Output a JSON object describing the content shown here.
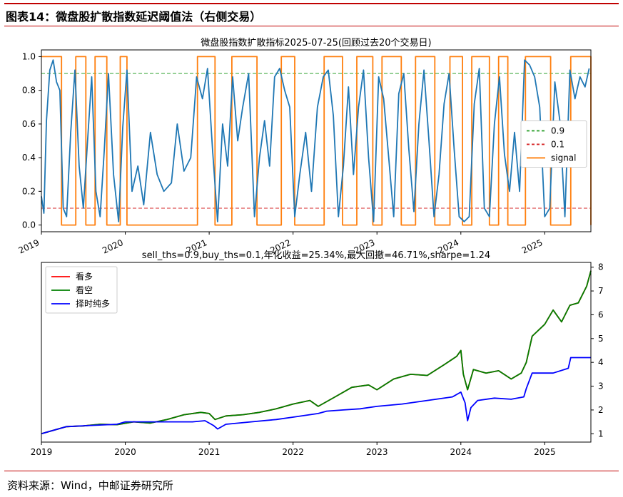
{
  "figure": {
    "title": "图表14：微盘股扩散指数延迟阈值法（右侧交易）",
    "source": "资料来源：Wind，中邮证券研究所",
    "accent_color": "#c00000"
  },
  "chart_data": [
    {
      "type": "line",
      "title": "微盘股指数扩散指标2025-07-25(回顾过去20个交易日)",
      "xlabel": "",
      "ylabel": "",
      "x_tick_labels": [
        "2019",
        "2020",
        "2021",
        "2022",
        "2023",
        "2024",
        "2025"
      ],
      "y_tick_labels": [
        "0.0",
        "0.2",
        "0.4",
        "0.6",
        "0.8",
        "1.0"
      ],
      "xlim": [
        2019.0,
        2025.55
      ],
      "ylim": [
        -0.04,
        1.04
      ],
      "legend_position": "center-right",
      "legend": [
        "0.9",
        "0.1",
        "signal"
      ],
      "reference_lines": [
        {
          "name": "0.9",
          "y": 0.9,
          "style": "dashed",
          "color": "#2ca02c"
        },
        {
          "name": "0.1",
          "y": 0.1,
          "style": "dashed",
          "color": "#d62728"
        }
      ],
      "series": [
        {
          "name": "signal",
          "color": "#ff7f0e",
          "step": true,
          "x": [
            2019.0,
            2019.22,
            2019.24,
            2019.39,
            2019.41,
            2019.52,
            2019.53,
            2019.62,
            2019.64,
            2019.76,
            2019.78,
            2019.92,
            2019.94,
            2020.0,
            2020.02,
            2020.18,
            2020.19,
            2020.84,
            2020.86,
            2021.05,
            2021.07,
            2021.25,
            2021.27,
            2021.55,
            2021.57,
            2021.84,
            2021.86,
            2022.0,
            2022.02,
            2022.35,
            2022.37,
            2022.57,
            2022.59,
            2022.74,
            2022.76,
            2022.93,
            2022.95,
            2023.04,
            2023.06,
            2023.27,
            2023.29,
            2023.44,
            2023.46,
            2023.67,
            2023.69,
            2023.85,
            2023.87,
            2024.0,
            2024.02,
            2024.11,
            2024.13,
            2024.32,
            2024.34,
            2024.43,
            2024.45,
            2024.54,
            2024.56,
            2024.75,
            2024.77,
            2025.05,
            2025.07,
            2025.29,
            2025.31,
            2025.55
          ],
          "values": [
            1,
            1,
            0,
            0,
            1,
            1,
            0,
            0,
            1,
            1,
            0,
            0,
            1,
            1,
            0,
            0,
            0,
            0,
            1,
            1,
            0,
            0,
            1,
            1,
            0,
            0,
            1,
            1,
            0,
            0,
            1,
            1,
            0,
            0,
            1,
            1,
            0,
            0,
            1,
            1,
            0,
            0,
            1,
            1,
            0,
            0,
            1,
            1,
            0,
            0,
            1,
            1,
            0,
            0,
            1,
            1,
            0,
            0,
            1,
            1,
            0,
            0,
            1,
            0
          ]
        },
        {
          "name": "",
          "color": "#1f77b4",
          "x": [
            2019.0,
            2019.03,
            2019.06,
            2019.1,
            2019.14,
            2019.18,
            2019.22,
            2019.26,
            2019.3,
            2019.35,
            2019.4,
            2019.45,
            2019.5,
            2019.55,
            2019.6,
            2019.65,
            2019.7,
            2019.75,
            2019.8,
            2019.86,
            2019.92,
            2019.97,
            2020.02,
            2020.08,
            2020.15,
            2020.22,
            2020.3,
            2020.38,
            2020.46,
            2020.55,
            2020.62,
            2020.7,
            2020.78,
            2020.85,
            2020.92,
            2020.98,
            2021.04,
            2021.1,
            2021.16,
            2021.22,
            2021.28,
            2021.34,
            2021.4,
            2021.47,
            2021.54,
            2021.6,
            2021.66,
            2021.72,
            2021.78,
            2021.84,
            2021.9,
            2021.96,
            2022.02,
            2022.08,
            2022.15,
            2022.22,
            2022.29,
            2022.36,
            2022.42,
            2022.48,
            2022.54,
            2022.6,
            2022.66,
            2022.72,
            2022.78,
            2022.84,
            2022.9,
            2022.96,
            2023.02,
            2023.08,
            2023.14,
            2023.2,
            2023.26,
            2023.32,
            2023.38,
            2023.44,
            2023.5,
            2023.56,
            2023.62,
            2023.68,
            2023.74,
            2023.8,
            2023.86,
            2023.92,
            2023.98,
            2024.04,
            2024.1,
            2024.16,
            2024.22,
            2024.28,
            2024.34,
            2024.4,
            2024.46,
            2024.52,
            2024.58,
            2024.64,
            2024.7,
            2024.76,
            2024.82,
            2024.88,
            2024.94,
            2025.0,
            2025.06,
            2025.12,
            2025.18,
            2025.24,
            2025.3,
            2025.36,
            2025.42,
            2025.48,
            2025.53
          ],
          "values": [
            0.17,
            0.07,
            0.62,
            0.92,
            0.98,
            0.85,
            0.8,
            0.1,
            0.05,
            0.55,
            0.92,
            0.35,
            0.1,
            0.5,
            0.88,
            0.2,
            0.05,
            0.45,
            0.9,
            0.3,
            0.02,
            0.58,
            0.92,
            0.2,
            0.35,
            0.12,
            0.55,
            0.3,
            0.2,
            0.25,
            0.6,
            0.32,
            0.4,
            0.88,
            0.75,
            0.93,
            0.45,
            0.02,
            0.6,
            0.35,
            0.88,
            0.5,
            0.7,
            0.9,
            0.05,
            0.4,
            0.62,
            0.35,
            0.88,
            0.93,
            0.8,
            0.7,
            0.05,
            0.3,
            0.55,
            0.2,
            0.7,
            0.88,
            0.92,
            0.65,
            0.05,
            0.35,
            0.82,
            0.3,
            0.7,
            0.92,
            0.4,
            0.02,
            0.88,
            0.75,
            0.4,
            0.05,
            0.78,
            0.9,
            0.45,
            0.08,
            0.6,
            0.92,
            0.5,
            0.05,
            0.3,
            0.72,
            0.9,
            0.45,
            0.05,
            0.02,
            0.05,
            0.72,
            0.93,
            0.1,
            0.05,
            0.6,
            0.88,
            0.42,
            0.2,
            0.55,
            0.2,
            0.98,
            0.95,
            0.88,
            0.7,
            0.05,
            0.1,
            0.85,
            0.62,
            0.05,
            0.92,
            0.75,
            0.88,
            0.82,
            0.93
          ]
        }
      ]
    },
    {
      "type": "line",
      "title": "sell_ths=0.9,buy_ths=0.1,年化收益=25.34%,最大回撤=46.71%,sharpe=1.24",
      "xlabel": "",
      "ylabel": "",
      "x_tick_labels": [
        "2019",
        "2020",
        "2021",
        "2022",
        "2023",
        "2024",
        "2025"
      ],
      "y_tick_labels": [
        "1",
        "2",
        "3",
        "4",
        "5",
        "6",
        "7",
        "8"
      ],
      "y_axis_side": "right",
      "xlim": [
        2019.0,
        2025.55
      ],
      "ylim": [
        0.65,
        8.2
      ],
      "legend_position": "top-left",
      "legend": [
        "看多",
        "看空",
        "择时纯多"
      ],
      "series": [
        {
          "name": "看多",
          "color": "#ff0000",
          "x": [
            2019.0,
            2019.15,
            2019.3,
            2019.5,
            2019.7,
            2019.9,
            2020.1,
            2020.3,
            2020.5,
            2020.7,
            2020.9,
            2021.0,
            2021.07,
            2021.2,
            2021.4,
            2021.6,
            2021.8,
            2022.0,
            2022.2,
            2022.3,
            2022.5,
            2022.7,
            2022.9,
            2023.0,
            2023.2,
            2023.4,
            2023.6,
            2023.8,
            2023.95,
            2024.0,
            2024.03,
            2024.08,
            2024.15,
            2024.3,
            2024.45,
            2024.6,
            2024.72,
            2024.78,
            2024.85,
            2025.0,
            2025.1,
            2025.2,
            2025.3,
            2025.4,
            2025.5,
            2025.55
          ],
          "values": [
            1.0,
            1.15,
            1.3,
            1.33,
            1.4,
            1.38,
            1.5,
            1.45,
            1.6,
            1.8,
            1.9,
            1.85,
            1.6,
            1.75,
            1.8,
            1.9,
            2.05,
            2.25,
            2.4,
            2.15,
            2.55,
            2.95,
            3.05,
            2.85,
            3.3,
            3.5,
            3.45,
            3.9,
            4.25,
            4.5,
            3.5,
            2.85,
            3.7,
            3.55,
            3.65,
            3.3,
            3.55,
            4.0,
            5.1,
            5.6,
            6.2,
            5.7,
            6.4,
            6.5,
            7.2,
            7.85
          ]
        },
        {
          "name": "看空",
          "color": "#008000",
          "x": [
            2019.0,
            2019.15,
            2019.3,
            2019.5,
            2019.7,
            2019.9,
            2020.1,
            2020.3,
            2020.5,
            2020.7,
            2020.9,
            2021.0,
            2021.07,
            2021.2,
            2021.4,
            2021.6,
            2021.8,
            2022.0,
            2022.2,
            2022.3,
            2022.5,
            2022.7,
            2022.9,
            2023.0,
            2023.2,
            2023.4,
            2023.6,
            2023.8,
            2023.95,
            2024.0,
            2024.03,
            2024.08,
            2024.15,
            2024.3,
            2024.45,
            2024.6,
            2024.72,
            2024.78,
            2024.85,
            2025.0,
            2025.1,
            2025.2,
            2025.3,
            2025.4,
            2025.5,
            2025.55
          ],
          "values": [
            1.0,
            1.15,
            1.3,
            1.33,
            1.4,
            1.38,
            1.5,
            1.45,
            1.6,
            1.8,
            1.9,
            1.85,
            1.6,
            1.75,
            1.8,
            1.9,
            2.05,
            2.25,
            2.4,
            2.15,
            2.55,
            2.95,
            3.05,
            2.85,
            3.3,
            3.5,
            3.45,
            3.9,
            4.25,
            4.5,
            3.5,
            2.85,
            3.7,
            3.55,
            3.65,
            3.3,
            3.55,
            4.0,
            5.1,
            5.6,
            6.2,
            5.7,
            6.4,
            6.5,
            7.2,
            7.85
          ]
        },
        {
          "name": "择时纯多",
          "color": "#0000ff",
          "x": [
            2019.0,
            2019.15,
            2019.3,
            2019.6,
            2019.9,
            2020.0,
            2020.2,
            2020.5,
            2020.8,
            2020.95,
            2021.05,
            2021.1,
            2021.2,
            2021.5,
            2021.8,
            2022.0,
            2022.3,
            2022.4,
            2022.6,
            2022.8,
            2023.0,
            2023.3,
            2023.6,
            2023.9,
            2024.0,
            2024.05,
            2024.08,
            2024.12,
            2024.2,
            2024.4,
            2024.6,
            2024.75,
            2024.78,
            2024.85,
            2025.0,
            2025.1,
            2025.28,
            2025.31,
            2025.4,
            2025.55
          ],
          "values": [
            1.0,
            1.15,
            1.3,
            1.35,
            1.4,
            1.5,
            1.5,
            1.5,
            1.5,
            1.55,
            1.35,
            1.2,
            1.4,
            1.5,
            1.6,
            1.7,
            1.85,
            1.95,
            2.0,
            2.05,
            2.15,
            2.25,
            2.4,
            2.55,
            2.75,
            2.3,
            1.55,
            2.1,
            2.4,
            2.5,
            2.45,
            2.55,
            2.9,
            3.55,
            3.55,
            3.55,
            3.75,
            4.2,
            4.2,
            4.2
          ]
        }
      ]
    }
  ]
}
